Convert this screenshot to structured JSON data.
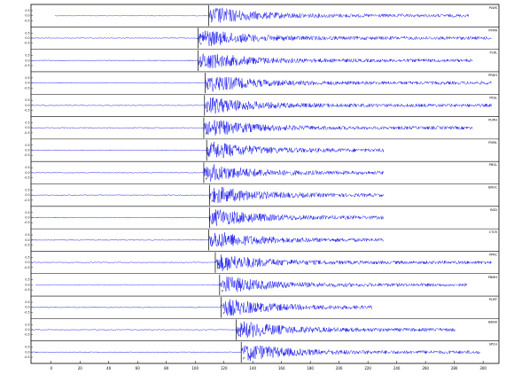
{
  "chart_data": {
    "type": "seismogram",
    "xlim": [
      -14,
      311
    ],
    "xticks": [
      0,
      20,
      40,
      60,
      80,
      100,
      120,
      140,
      160,
      180,
      200,
      220,
      240,
      260,
      280,
      300
    ],
    "trace_ylim": [
      -1,
      1
    ],
    "trace_yticks": [
      {
        "value": -0.5,
        "label": "-0.5"
      },
      {
        "value": 0,
        "label": "0.0"
      },
      {
        "value": 0.5,
        "label": "0.5"
      }
    ],
    "color": "#1010ee",
    "traces": [
      {
        "name": "PLWS",
        "pick_label": "P",
        "pick": 109.5,
        "start": 2.5,
        "end": 290
      },
      {
        "name": "PFMR",
        "pick_label": "P",
        "pick": 102,
        "start": -14,
        "end": 306
      },
      {
        "name": "PLRL",
        "pick_label": "P",
        "pick": 102,
        "start": -14,
        "end": 293
      },
      {
        "name": "PRDH",
        "pick_label": "P",
        "pick": 107,
        "start": -14,
        "end": 306
      },
      {
        "name": "PKSL",
        "pick_label": "P",
        "pick": 106.5,
        "start": -14,
        "end": 306
      },
      {
        "name": "PLMH",
        "pick_label": "P",
        "pick": 106,
        "start": -14,
        "end": 293
      },
      {
        "name": "PDML",
        "pick_label": "P",
        "pick": 108,
        "start": -14,
        "end": 231
      },
      {
        "name": "PBGL",
        "pick_label": "P",
        "pick": 106,
        "start": -14,
        "end": 231
      },
      {
        "name": "BRUC",
        "pick_label": "P",
        "pick": 110,
        "start": -14,
        "end": 231
      },
      {
        "name": "BGD",
        "pick_label": "P",
        "pick": 110,
        "start": -14,
        "end": 231
      },
      {
        "name": "CTCR",
        "pick_label": "P",
        "pick": 109.5,
        "start": -14,
        "end": 231
      },
      {
        "name": "PPRC",
        "pick_label": "P",
        "pick": 114,
        "start": -14,
        "end": 306
      },
      {
        "name": "PBMH",
        "pick_label": "P",
        "pick": 117,
        "start": -11,
        "end": 289
      },
      {
        "name": "PLMT",
        "pick_label": "P",
        "pick": 118,
        "start": -14,
        "end": 223
      },
      {
        "name": "BBGR",
        "pick_label": "P",
        "pick": 128.6,
        "start": -14,
        "end": 281
      },
      {
        "name": "SPCH",
        "pick_label": "P",
        "pick": 132,
        "start": -14,
        "end": 298
      }
    ]
  }
}
